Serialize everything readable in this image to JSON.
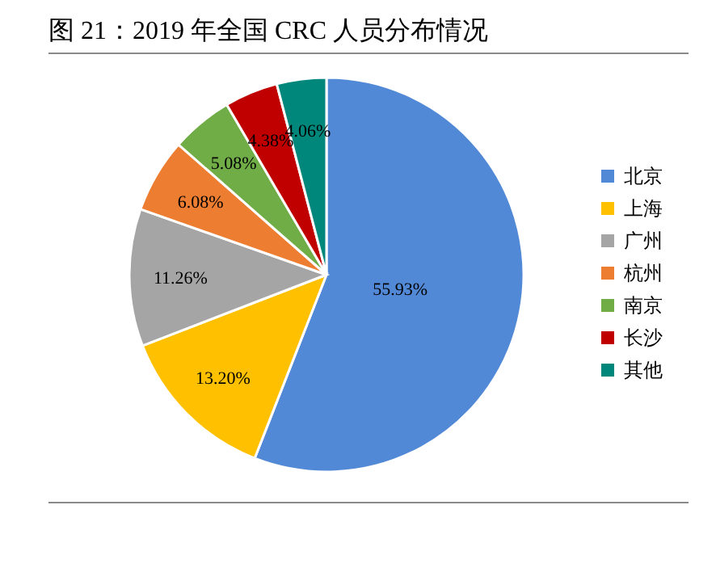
{
  "chart_data": {
    "type": "pie",
    "title": "图 21：2019 年全国 CRC 人员分布情况",
    "categories": [
      "北京",
      "上海",
      "广州",
      "杭州",
      "南京",
      "长沙",
      "其他"
    ],
    "values": [
      55.93,
      13.2,
      11.26,
      6.08,
      5.08,
      4.38,
      4.06
    ],
    "value_labels": [
      "55.93%",
      "13.20%",
      "11.26%",
      "6.08%",
      "5.08%",
      "4.38%",
      "4.06%"
    ],
    "colors": [
      "#5289d6",
      "#ffc000",
      "#a5a5a5",
      "#ed7d31",
      "#70ad47",
      "#c00000",
      "#00877c"
    ],
    "legend": "right"
  }
}
